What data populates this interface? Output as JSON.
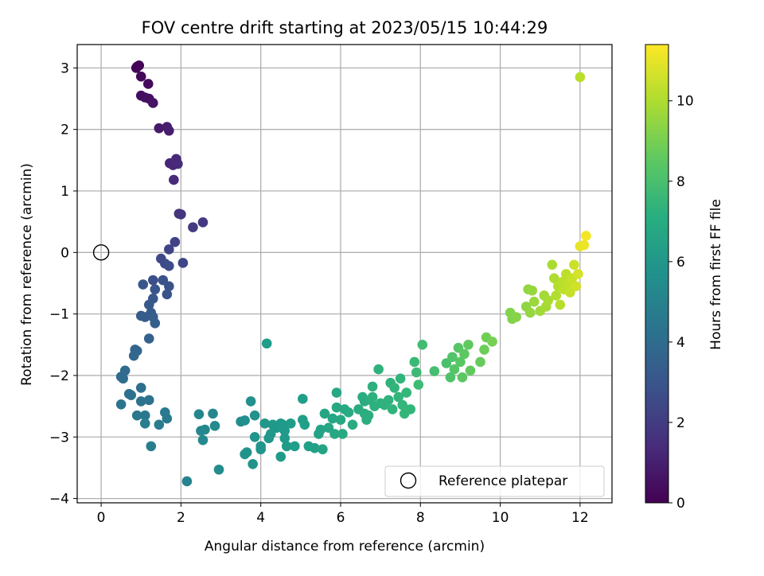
{
  "chart_data": {
    "type": "scatter",
    "title": "FOV centre drift starting at 2023/05/15 10:44:29",
    "xlabel": "Angular distance from reference (arcmin)",
    "ylabel": "Rotation from reference (arcmin)",
    "xlim": [
      -0.6,
      12.8
    ],
    "ylim": [
      -4.07,
      3.38
    ],
    "xticks": [
      0,
      2,
      4,
      6,
      8,
      10,
      12
    ],
    "yticks": [
      -4,
      -3,
      -2,
      -1,
      0,
      1,
      2,
      3
    ],
    "grid": true,
    "legend": {
      "placement": "lower-right",
      "entries": [
        "Reference platepar"
      ]
    },
    "reference_point": {
      "x": 0,
      "y": 0
    },
    "colorbar": {
      "label": "Hours from first FF file",
      "range": [
        0,
        11.4
      ],
      "ticks": [
        0,
        2,
        4,
        6,
        8,
        10
      ],
      "colormap": "viridis"
    },
    "series": [
      {
        "fields": [
          "x",
          "y",
          "hours"
        ],
        "points": [
          [
            0.9,
            3.02,
            0.0
          ],
          [
            0.95,
            3.04,
            0.05
          ],
          [
            0.88,
            3.0,
            0.1
          ],
          [
            1.0,
            2.86,
            0.2
          ],
          [
            1.18,
            2.74,
            0.3
          ],
          [
            1.0,
            2.55,
            0.4
          ],
          [
            1.1,
            2.52,
            0.45
          ],
          [
            1.2,
            2.5,
            0.5
          ],
          [
            1.3,
            2.43,
            0.55
          ],
          [
            1.45,
            2.02,
            0.8
          ],
          [
            1.65,
            2.04,
            0.9
          ],
          [
            1.7,
            1.98,
            0.95
          ],
          [
            1.72,
            1.45,
            1.2
          ],
          [
            1.8,
            1.42,
            1.25
          ],
          [
            1.88,
            1.52,
            1.3
          ],
          [
            1.92,
            1.44,
            1.35
          ],
          [
            1.82,
            1.18,
            1.4
          ],
          [
            2.0,
            0.62,
            1.7
          ],
          [
            1.95,
            0.63,
            1.75
          ],
          [
            2.55,
            0.49,
            1.9
          ],
          [
            2.3,
            0.41,
            1.95
          ],
          [
            1.85,
            0.17,
            2.2
          ],
          [
            1.7,
            0.05,
            2.3
          ],
          [
            2.05,
            -0.17,
            2.4
          ],
          [
            1.5,
            -0.1,
            2.5
          ],
          [
            1.6,
            -0.18,
            2.6
          ],
          [
            1.7,
            -0.22,
            2.65
          ],
          [
            1.3,
            -0.45,
            2.8
          ],
          [
            1.55,
            -0.45,
            2.85
          ],
          [
            1.7,
            -0.55,
            2.9
          ],
          [
            1.65,
            -0.68,
            2.95
          ],
          [
            1.35,
            -0.6,
            3.0
          ],
          [
            1.05,
            -0.52,
            3.05
          ],
          [
            1.3,
            -0.75,
            3.1
          ],
          [
            1.2,
            -0.85,
            3.15
          ],
          [
            1.25,
            -0.98,
            3.2
          ],
          [
            1.0,
            -1.03,
            3.25
          ],
          [
            1.1,
            -1.05,
            3.3
          ],
          [
            1.3,
            -1.05,
            3.35
          ],
          [
            1.35,
            -1.15,
            3.4
          ],
          [
            1.2,
            -1.4,
            3.5
          ],
          [
            0.85,
            -1.58,
            3.7
          ],
          [
            0.9,
            -1.6,
            3.72
          ],
          [
            0.82,
            -1.68,
            3.75
          ],
          [
            0.6,
            -1.92,
            3.9
          ],
          [
            0.5,
            -2.02,
            3.95
          ],
          [
            0.55,
            -2.05,
            4.0
          ],
          [
            1.0,
            -2.2,
            4.1
          ],
          [
            0.7,
            -2.3,
            4.2
          ],
          [
            0.75,
            -2.32,
            4.25
          ],
          [
            1.2,
            -2.4,
            4.3
          ],
          [
            1.0,
            -2.42,
            4.35
          ],
          [
            0.5,
            -2.47,
            4.4
          ],
          [
            0.9,
            -2.65,
            4.55
          ],
          [
            1.1,
            -2.65,
            4.6
          ],
          [
            1.6,
            -2.6,
            4.65
          ],
          [
            1.65,
            -2.7,
            4.7
          ],
          [
            1.45,
            -2.8,
            4.75
          ],
          [
            1.1,
            -2.78,
            4.8
          ],
          [
            1.25,
            -3.15,
            4.9
          ],
          [
            2.15,
            -3.72,
            5.1
          ],
          [
            2.45,
            -2.63,
            5.2
          ],
          [
            2.8,
            -2.62,
            5.25
          ],
          [
            2.5,
            -2.9,
            5.3
          ],
          [
            2.6,
            -2.88,
            5.35
          ],
          [
            2.55,
            -3.05,
            5.4
          ],
          [
            2.85,
            -2.82,
            5.45
          ],
          [
            2.95,
            -3.53,
            5.5
          ],
          [
            3.5,
            -2.75,
            5.6
          ],
          [
            3.6,
            -2.73,
            5.65
          ],
          [
            3.75,
            -2.42,
            5.7
          ],
          [
            3.85,
            -2.65,
            5.75
          ],
          [
            3.65,
            -3.25,
            5.8
          ],
          [
            3.6,
            -3.28,
            5.82
          ],
          [
            3.8,
            -3.44,
            5.85
          ],
          [
            3.85,
            -3.0,
            5.9
          ],
          [
            4.0,
            -3.15,
            5.95
          ],
          [
            4.0,
            -3.2,
            5.97
          ],
          [
            4.1,
            -2.78,
            6.0
          ],
          [
            4.2,
            -3.02,
            6.02
          ],
          [
            4.25,
            -2.95,
            6.05
          ],
          [
            4.3,
            -2.8,
            6.08
          ],
          [
            4.4,
            -2.85,
            6.1
          ],
          [
            4.5,
            -2.78,
            6.12
          ],
          [
            4.55,
            -2.8,
            6.15
          ],
          [
            4.6,
            -2.9,
            6.18
          ],
          [
            4.6,
            -3.02,
            6.2
          ],
          [
            4.5,
            -3.32,
            6.22
          ],
          [
            4.65,
            -3.15,
            6.25
          ],
          [
            4.75,
            -2.78,
            6.3
          ],
          [
            4.85,
            -3.15,
            6.32
          ],
          [
            5.05,
            -2.38,
            6.35
          ],
          [
            5.05,
            -2.72,
            6.4
          ],
          [
            5.1,
            -2.8,
            6.42
          ],
          [
            5.2,
            -3.15,
            6.45
          ],
          [
            5.35,
            -3.18,
            6.5
          ],
          [
            5.45,
            -2.95,
            6.55
          ],
          [
            5.5,
            -2.88,
            6.6
          ],
          [
            5.55,
            -3.2,
            6.65
          ],
          [
            5.6,
            -2.62,
            6.7
          ],
          [
            5.7,
            -2.85,
            6.72
          ],
          [
            5.8,
            -2.7,
            6.75
          ],
          [
            5.85,
            -2.95,
            6.78
          ],
          [
            5.9,
            -2.28,
            6.8
          ],
          [
            5.9,
            -2.52,
            6.82
          ],
          [
            6.0,
            -2.72,
            6.85
          ],
          [
            6.05,
            -2.95,
            6.88
          ],
          [
            6.1,
            -2.55,
            6.9
          ],
          [
            6.2,
            -2.6,
            6.92
          ],
          [
            6.3,
            -2.8,
            6.95
          ],
          [
            4.15,
            -1.48,
            6.3
          ],
          [
            6.45,
            -2.55,
            7.0
          ],
          [
            6.55,
            -2.35,
            7.02
          ],
          [
            6.6,
            -2.42,
            7.05
          ],
          [
            6.6,
            -2.62,
            7.08
          ],
          [
            6.65,
            -2.72,
            7.1
          ],
          [
            6.7,
            -2.65,
            7.12
          ],
          [
            6.75,
            -2.4,
            7.15
          ],
          [
            6.8,
            -2.35,
            7.18
          ],
          [
            6.8,
            -2.18,
            7.2
          ],
          [
            6.85,
            -2.5,
            7.22
          ],
          [
            6.95,
            -1.9,
            7.25
          ],
          [
            7.0,
            -2.45,
            7.28
          ],
          [
            7.1,
            -2.48,
            7.3
          ],
          [
            7.2,
            -2.4,
            7.33
          ],
          [
            7.25,
            -2.12,
            7.35
          ],
          [
            7.3,
            -2.55,
            7.38
          ],
          [
            7.35,
            -2.2,
            7.4
          ],
          [
            7.45,
            -2.35,
            7.43
          ],
          [
            7.5,
            -2.05,
            7.45
          ],
          [
            7.55,
            -2.48,
            7.48
          ],
          [
            7.6,
            -2.62,
            7.5
          ],
          [
            7.65,
            -2.28,
            7.53
          ],
          [
            7.75,
            -2.55,
            7.55
          ],
          [
            7.85,
            -1.78,
            7.7
          ],
          [
            7.9,
            -1.95,
            7.75
          ],
          [
            7.95,
            -2.15,
            7.8
          ],
          [
            8.05,
            -1.5,
            7.9
          ],
          [
            8.35,
            -1.93,
            8.0
          ],
          [
            8.65,
            -1.8,
            8.1
          ],
          [
            8.75,
            -2.03,
            8.2
          ],
          [
            8.8,
            -1.7,
            8.25
          ],
          [
            8.85,
            -1.9,
            8.3
          ],
          [
            8.95,
            -1.55,
            8.35
          ],
          [
            9.0,
            -1.78,
            8.4
          ],
          [
            9.05,
            -2.03,
            8.45
          ],
          [
            9.1,
            -1.65,
            8.5
          ],
          [
            9.2,
            -1.5,
            8.55
          ],
          [
            9.25,
            -1.92,
            8.6
          ],
          [
            9.5,
            -1.78,
            8.7
          ],
          [
            9.6,
            -1.58,
            8.8
          ],
          [
            9.65,
            -1.38,
            8.9
          ],
          [
            9.8,
            -1.45,
            9.0
          ],
          [
            10.25,
            -0.98,
            9.2
          ],
          [
            10.3,
            -1.08,
            9.25
          ],
          [
            10.4,
            -1.05,
            9.3
          ],
          [
            10.65,
            -0.88,
            9.45
          ],
          [
            10.7,
            -0.6,
            9.5
          ],
          [
            10.75,
            -0.98,
            9.55
          ],
          [
            10.8,
            -0.62,
            9.6
          ],
          [
            10.85,
            -0.8,
            9.65
          ],
          [
            11.0,
            -0.95,
            9.75
          ],
          [
            11.1,
            -0.7,
            9.8
          ],
          [
            11.15,
            -0.88,
            9.85
          ],
          [
            11.2,
            -0.78,
            9.9
          ],
          [
            11.3,
            -0.2,
            9.95
          ],
          [
            11.35,
            -0.42,
            10.0
          ],
          [
            11.4,
            -0.7,
            10.05
          ],
          [
            11.45,
            -0.55,
            10.1
          ],
          [
            11.5,
            -0.85,
            10.15
          ],
          [
            11.55,
            -0.48,
            10.2
          ],
          [
            11.6,
            -0.6,
            10.25
          ],
          [
            11.65,
            -0.35,
            10.3
          ],
          [
            11.7,
            -0.5,
            10.35
          ],
          [
            11.75,
            -0.65,
            10.4
          ],
          [
            11.8,
            -0.42,
            10.45
          ],
          [
            11.85,
            -0.2,
            10.5
          ],
          [
            11.9,
            -0.55,
            10.6
          ],
          [
            11.95,
            -0.35,
            10.7
          ],
          [
            12.0,
            0.1,
            11.0
          ],
          [
            12.1,
            0.12,
            11.1
          ],
          [
            12.15,
            0.27,
            11.2
          ],
          [
            12.0,
            2.85,
            10.2
          ]
        ]
      }
    ]
  }
}
